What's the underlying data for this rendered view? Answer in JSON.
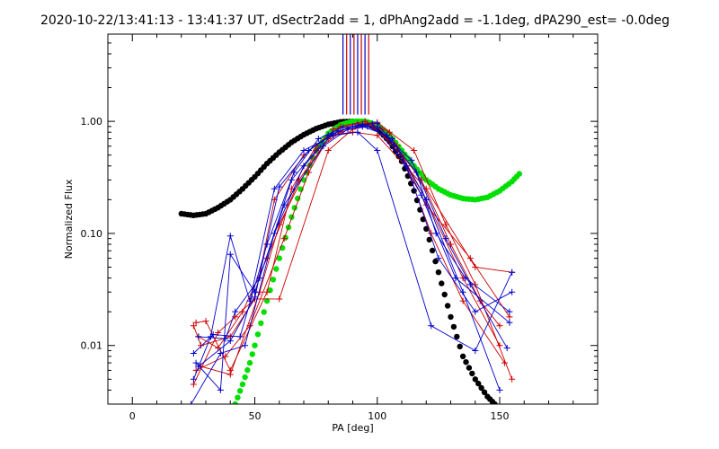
{
  "chart_data": {
    "type": "line",
    "title": "2020-10-22/13:41:13 - 13:41:37 UT, dSectr2add = 1, dPhAng2add = -1.1deg, dPA290_est= -0.0deg",
    "xlabel": "PA [deg]",
    "ylabel": "Normalized Flux",
    "xlim": [
      -10,
      190
    ],
    "ylim": [
      0.003,
      6.0
    ],
    "yscale": "log",
    "grid": false,
    "x_ticks": [
      0,
      50,
      100,
      150
    ],
    "x_tick_labels": [
      "0",
      "50",
      "100",
      "150"
    ],
    "y_ticks": [
      0.01,
      0.1,
      1.0
    ],
    "y_tick_labels": [
      "0.01",
      "0.10",
      "1.00"
    ],
    "colors": {
      "red": "#cc0000",
      "blue": "#0000cc",
      "black": "#000000",
      "green": "#00e000"
    },
    "field_direction_lines": {
      "x": [
        86,
        87.5,
        89,
        90.5,
        92,
        93.5,
        95,
        96.5
      ],
      "colors": [
        "#0000cc",
        "#cc0000",
        "#0000cc",
        "#cc0000",
        "#0000cc",
        "#cc0000",
        "#0000cc",
        "#cc0000"
      ],
      "y_from": 1.15,
      "y_to": 6.0
    },
    "series": [
      {
        "name": "black-model",
        "style": "dots",
        "color": "#000000",
        "x": [
          20,
          25,
          30,
          35,
          40,
          45,
          50,
          55,
          60,
          65,
          70,
          75,
          80,
          85,
          90,
          95,
          100,
          105,
          110,
          115,
          120,
          125,
          130,
          135,
          140,
          145,
          148
        ],
        "y": [
          0.15,
          0.145,
          0.15,
          0.17,
          0.2,
          0.25,
          0.32,
          0.42,
          0.53,
          0.65,
          0.76,
          0.86,
          0.94,
          0.99,
          1.0,
          0.97,
          0.86,
          0.66,
          0.44,
          0.24,
          0.11,
          0.045,
          0.018,
          0.008,
          0.005,
          0.0035,
          0.003
        ]
      },
      {
        "name": "green-model",
        "style": "dots",
        "color": "#00e000",
        "x": [
          42,
          45,
          48,
          50,
          55,
          60,
          65,
          70,
          75,
          80,
          85,
          90,
          95,
          100,
          105,
          110,
          115,
          120,
          125,
          130,
          135,
          140,
          145,
          150,
          155,
          158
        ],
        "y": [
          0.003,
          0.0045,
          0.007,
          0.01,
          0.025,
          0.06,
          0.14,
          0.3,
          0.55,
          0.78,
          0.93,
          1.0,
          1.0,
          0.93,
          0.76,
          0.55,
          0.4,
          0.3,
          0.25,
          0.22,
          0.205,
          0.2,
          0.21,
          0.24,
          0.29,
          0.34
        ]
      },
      {
        "name": "red-1",
        "style": "line-plus",
        "color": "#cc0000",
        "x": [
          25,
          28,
          40,
          50,
          58,
          70,
          80,
          90,
          100,
          120,
          140,
          155
        ],
        "y": [
          0.015,
          0.01,
          0.012,
          0.026,
          0.2,
          0.5,
          0.75,
          0.8,
          0.75,
          0.25,
          0.05,
          0.045
        ]
      },
      {
        "name": "red-2",
        "style": "line-plus",
        "color": "#cc0000",
        "x": [
          26,
          30,
          40,
          55,
          65,
          75,
          85,
          95,
          105,
          120,
          135,
          150
        ],
        "y": [
          0.016,
          0.0165,
          0.006,
          0.03,
          0.25,
          0.6,
          0.9,
          1.0,
          0.8,
          0.2,
          0.04,
          0.01
        ]
      },
      {
        "name": "red-3",
        "style": "line-plus",
        "color": "#cc0000",
        "x": [
          25,
          35,
          42,
          50,
          60,
          80,
          90,
          98,
          110,
          122,
          135,
          152
        ],
        "y": [
          0.0045,
          0.013,
          0.018,
          0.026,
          0.026,
          0.55,
          0.85,
          0.92,
          0.5,
          0.1,
          0.025,
          0.007
        ]
      },
      {
        "name": "red-4",
        "style": "line-plus",
        "color": "#cc0000",
        "x": [
          26,
          38,
          48,
          62,
          72,
          82,
          92,
          100,
          115,
          128,
          140,
          155
        ],
        "y": [
          0.006,
          0.008,
          0.015,
          0.09,
          0.35,
          0.85,
          0.95,
          0.98,
          0.55,
          0.12,
          0.035,
          0.005
        ]
      },
      {
        "name": "red-5",
        "style": "line-plus",
        "color": "#cc0000",
        "x": [
          27,
          35,
          45,
          55,
          68,
          80,
          88,
          96,
          108,
          120,
          138,
          154
        ],
        "y": [
          0.012,
          0.0095,
          0.02,
          0.06,
          0.3,
          0.7,
          0.88,
          0.95,
          0.6,
          0.18,
          0.06,
          0.018
        ]
      },
      {
        "name": "red-6",
        "style": "line-plus",
        "color": "#cc0000",
        "x": [
          28,
          40,
          52,
          60,
          75,
          85,
          95,
          102,
          118,
          130,
          142,
          150
        ],
        "y": [
          0.0065,
          0.0055,
          0.03,
          0.12,
          0.55,
          0.8,
          0.93,
          0.85,
          0.3,
          0.08,
          0.025,
          0.015
        ]
      },
      {
        "name": "blue-1",
        "style": "line-plus",
        "color": "#0000cc",
        "x": [
          25,
          32,
          40,
          48,
          58,
          70,
          82,
          92,
          100,
          122,
          140,
          155
        ],
        "y": [
          0.005,
          0.012,
          0.095,
          0.025,
          0.25,
          0.55,
          0.75,
          0.8,
          0.55,
          0.015,
          0.009,
          0.045
        ]
      },
      {
        "name": "blue-2",
        "style": "line-plus",
        "color": "#0000cc",
        "x": [
          26,
          36,
          40,
          50,
          62,
          78,
          88,
          96,
          106,
          120,
          135,
          150
        ],
        "y": [
          0.007,
          0.004,
          0.065,
          0.03,
          0.18,
          0.6,
          0.85,
          0.9,
          0.7,
          0.2,
          0.03,
          0.004
        ]
      },
      {
        "name": "blue-3",
        "style": "line-plus",
        "color": "#0000cc",
        "x": [
          27,
          38,
          42,
          52,
          65,
          80,
          90,
          98,
          112,
          125,
          140,
          155
        ],
        "y": [
          0.012,
          0.0115,
          0.02,
          0.04,
          0.3,
          0.75,
          0.9,
          0.95,
          0.4,
          0.06,
          0.02,
          0.03
        ]
      },
      {
        "name": "blue-4",
        "style": "line-plus",
        "color": "#0000cc",
        "x": [
          25,
          33,
          44,
          55,
          66,
          76,
          86,
          94,
          104,
          118,
          132,
          154
        ],
        "y": [
          0.0085,
          0.0125,
          0.012,
          0.08,
          0.35,
          0.7,
          0.88,
          0.9,
          0.75,
          0.22,
          0.04,
          0.016
        ]
      },
      {
        "name": "blue-5",
        "style": "line-plus",
        "color": "#0000cc",
        "x": [
          24,
          36,
          46,
          58,
          70,
          82,
          92,
          100,
          114,
          128,
          138,
          153
        ],
        "y": [
          0.003,
          0.0085,
          0.01,
          0.1,
          0.4,
          0.78,
          0.92,
          0.88,
          0.45,
          0.09,
          0.035,
          0.0095
        ]
      },
      {
        "name": "blue-6",
        "style": "line-plus",
        "color": "#0000cc",
        "x": [
          27,
          40,
          50,
          60,
          72,
          84,
          94,
          100,
          116,
          124,
          136,
          154
        ],
        "y": [
          0.0065,
          0.011,
          0.027,
          0.26,
          0.55,
          0.82,
          0.94,
          0.96,
          0.35,
          0.1,
          0.04,
          0.02
        ]
      }
    ]
  }
}
